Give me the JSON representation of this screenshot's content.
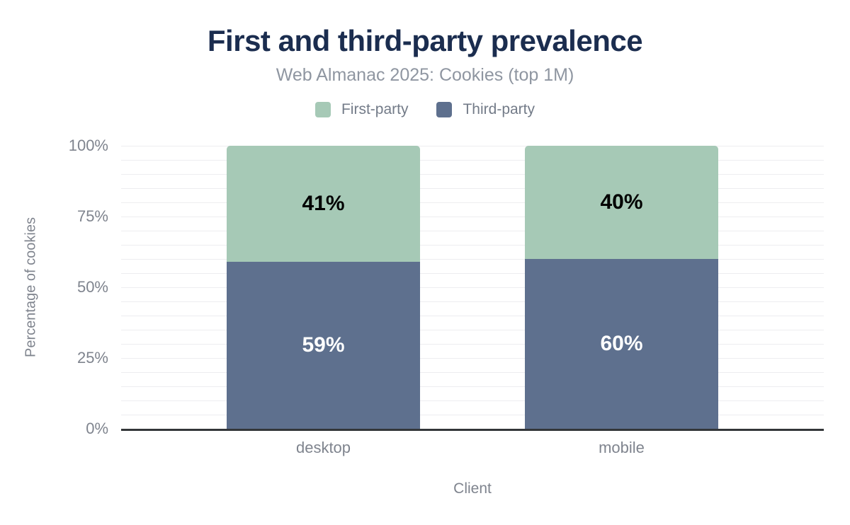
{
  "header": {
    "title": "First and third-party prevalence",
    "subtitle": "Web Almanac 2025: Cookies (top 1M)"
  },
  "legend": {
    "position": "top",
    "items": [
      {
        "label": "First-party",
        "color": "#a6c9b6"
      },
      {
        "label": "Third-party",
        "color": "#5e708e"
      }
    ]
  },
  "chart_data": {
    "type": "bar",
    "stacked": true,
    "title": "First and third-party prevalence",
    "subtitle": "Web Almanac 2025: Cookies (top 1M)",
    "xlabel": "Client",
    "ylabel": "Percentage of cookies",
    "categories": [
      "desktop",
      "mobile"
    ],
    "series": [
      {
        "name": "Third-party",
        "values": [
          59,
          60
        ],
        "color": "#5e708e",
        "label_color": "#ffffff"
      },
      {
        "name": "First-party",
        "values": [
          41,
          40
        ],
        "color": "#a6c9b6",
        "label_color": "#000000"
      }
    ],
    "value_label_suffix": "%",
    "ylim": [
      0,
      100
    ],
    "yticks": [
      {
        "value": 0,
        "label": "0%"
      },
      {
        "value": 25,
        "label": "25%"
      },
      {
        "value": 50,
        "label": "50%"
      },
      {
        "value": 75,
        "label": "75%"
      },
      {
        "value": 100,
        "label": "100%"
      }
    ],
    "grid": true,
    "minor_grid_step": 5,
    "legend_position": "top"
  },
  "colors": {
    "background": "#ffffff",
    "title_text": "#1b2d4f",
    "subtitle_text": "#8f96a1",
    "legend_text": "#737b88",
    "tick_text": "#7f848e",
    "gridline": "#ededf0",
    "axis_line": "#333639",
    "first_party": "#a6c9b6",
    "third_party": "#5e708e"
  }
}
